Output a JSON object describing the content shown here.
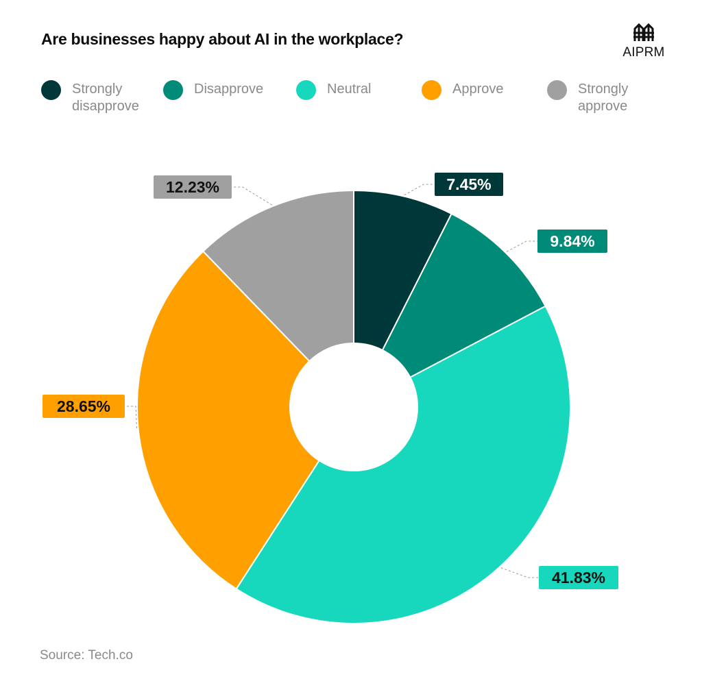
{
  "title": "Are businesses happy about AI in the workplace?",
  "brand": "AIPRM",
  "source": "Source: Tech.co",
  "colors": {
    "strongly_disapprove": "#00383a",
    "disapprove": "#008a78",
    "neutral": "#17d8bd",
    "approve": "#ffa000",
    "strongly_approve": "#a0a0a0"
  },
  "legend": [
    {
      "label": "Strongly\ndisapprove",
      "color": "#00383a"
    },
    {
      "label": "Disapprove",
      "color": "#008a78"
    },
    {
      "label": "Neutral",
      "color": "#17d8bd"
    },
    {
      "label": "Approve",
      "color": "#ffa000"
    },
    {
      "label": "Strongly\napprove",
      "color": "#a0a0a0"
    }
  ],
  "chart_data": {
    "type": "pie",
    "title": "Are businesses happy about AI in the workplace?",
    "donut": true,
    "categories": [
      "Strongly disapprove",
      "Disapprove",
      "Neutral",
      "Approve",
      "Strongly approve"
    ],
    "values": [
      7.45,
      9.84,
      41.83,
      28.65,
      12.23
    ],
    "labels": [
      "7.45%",
      "9.84%",
      "41.83%",
      "28.65%",
      "12.23%"
    ],
    "label_text_colors": [
      "#ffffff",
      "#ffffff",
      "#111111",
      "#111111",
      "#111111"
    ],
    "legend_position": "top",
    "source": "Source: Tech.co"
  }
}
